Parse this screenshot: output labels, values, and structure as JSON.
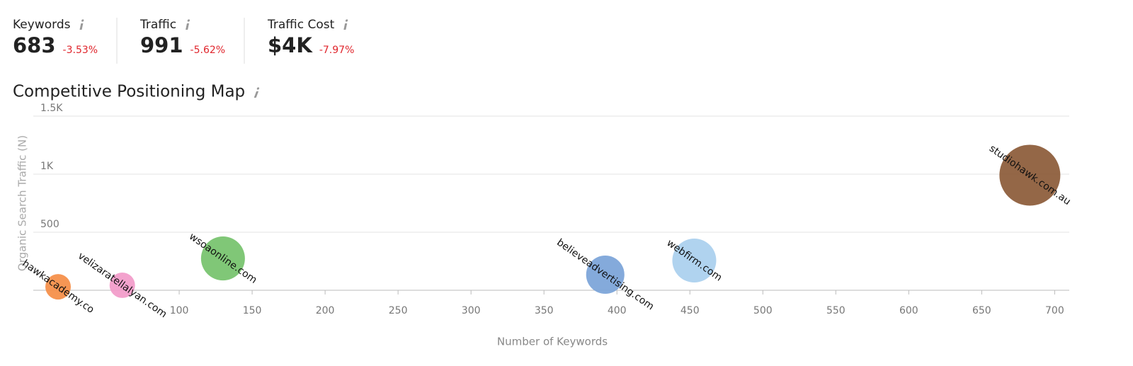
{
  "metrics": [
    {
      "label": "Keywords",
      "value": "683",
      "change": "-3.53%"
    },
    {
      "label": "Traffic",
      "value": "991",
      "change": "-5.62%"
    },
    {
      "label": "Traffic Cost",
      "value": "$4K",
      "change": "-7.97%"
    }
  ],
  "chart_data": {
    "type": "bubble",
    "title": "Competitive Positioning Map",
    "x_label": "Number of Keywords",
    "y_label": "Organic Search Traffic (N)",
    "xlim": [
      0,
      710
    ],
    "xticks": [
      100,
      150,
      200,
      250,
      300,
      350,
      400,
      450,
      500,
      550,
      600,
      650,
      700
    ],
    "ylim": [
      0,
      1500
    ],
    "yticks": [
      500,
      {
        "value": 1000,
        "label": "1K"
      },
      {
        "value": 1500,
        "label": "1.5K"
      }
    ],
    "grid": true,
    "series": [
      {
        "name": "hawkacademy.co",
        "color": "#f58d45",
        "x": [
          17
        ],
        "values": [
          30
        ],
        "sizes": [
          700
        ]
      },
      {
        "name": "velizaratellalyan.com",
        "color": "#f29ac9",
        "x": [
          61
        ],
        "values": [
          43
        ],
        "sizes": [
          700
        ]
      },
      {
        "name": "wsoaonline.com",
        "color": "#75c26b",
        "x": [
          130
        ],
        "values": [
          274
        ],
        "sizes": [
          2080
        ]
      },
      {
        "name": "believeadvertising.com",
        "color": "#7aa3d8",
        "x": [
          392
        ],
        "values": [
          134
        ],
        "sizes": [
          1580
        ]
      },
      {
        "name": "webfirm.com",
        "color": "#a9cfee",
        "x": [
          453
        ],
        "values": [
          256
        ],
        "sizes": [
          2080
        ]
      },
      {
        "name": "studiohawk.com.au",
        "color": "#8b5a37",
        "x": [
          683
        ],
        "values": [
          991
        ],
        "sizes": [
          4000
        ]
      }
    ]
  }
}
